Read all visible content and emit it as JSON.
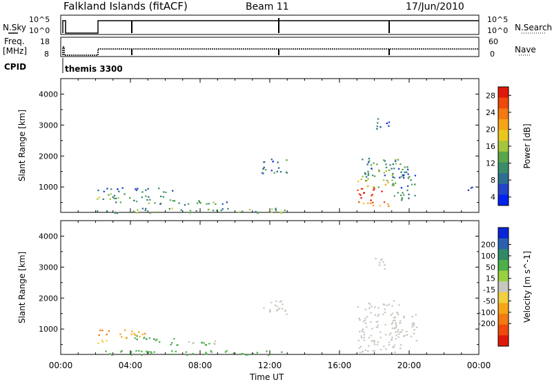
{
  "header": {
    "station": "Falkland Islands (fitACF)",
    "beam": "Beam 11",
    "date": "17/Jun/2010"
  },
  "top_panels": {
    "nsky_label": "N.Sky",
    "nsearch_label": "N.Search",
    "freq_label_1": "Freq.",
    "freq_label_2": "[MHz]",
    "nave_label": "Nave",
    "cpid_label": "CPID",
    "cpid_value": "themis 3300",
    "nsky_ticks": [
      "10^5",
      "10^0"
    ],
    "freq_ticks": [
      "18",
      "8"
    ],
    "nave_ticks": [
      "60",
      "0"
    ]
  },
  "chart_data": [
    {
      "type": "heatmap",
      "name": "power",
      "ylabel": "Slant Range [km]",
      "xlabel": "",
      "xlim": [
        0,
        24
      ],
      "ylim": [
        180,
        4500
      ],
      "xticks": [
        0,
        4,
        8,
        12,
        16,
        20,
        24
      ],
      "yticks": [
        1000,
        2000,
        3000,
        4000
      ],
      "colorbar": {
        "label": "Power [dB]",
        "ticks": [
          "4",
          "8",
          "12",
          "16",
          "20",
          "24",
          "28"
        ],
        "colors": [
          "#0022ee",
          "#2244c8",
          "#2e6e90",
          "#3b8c68",
          "#5aa64a",
          "#a4c63c",
          "#e8c81e",
          "#f4a616",
          "#f27a10",
          "#ee4a0c",
          "#e0180a"
        ]
      },
      "regions": [
        {
          "t0": 2.0,
          "t1": 3.8,
          "r0": 850,
          "r1": 1000,
          "value": 6
        },
        {
          "t0": 2.0,
          "t1": 2.9,
          "r0": 560,
          "r1": 720,
          "value": 14
        },
        {
          "t0": 2.6,
          "t1": 6.2,
          "r0": 650,
          "r1": 800,
          "value": 10
        },
        {
          "t0": 3.0,
          "t1": 8.0,
          "r0": 500,
          "r1": 620,
          "value": 12
        },
        {
          "t0": 4.0,
          "t1": 6.5,
          "r0": 820,
          "r1": 980,
          "value": 8
        },
        {
          "t0": 5.0,
          "t1": 9.5,
          "r0": 430,
          "r1": 540,
          "value": 10
        },
        {
          "t0": 2.0,
          "t1": 13.0,
          "r0": 180,
          "r1": 330,
          "value": 12
        },
        {
          "t0": 11.5,
          "t1": 13.0,
          "r0": 1450,
          "r1": 1950,
          "value": 8
        },
        {
          "t0": 17.0,
          "t1": 19.8,
          "r0": 1300,
          "r1": 1950,
          "value": 10
        },
        {
          "t0": 17.0,
          "t1": 19.0,
          "r0": 1000,
          "r1": 1300,
          "value": 16
        },
        {
          "t0": 17.0,
          "t1": 18.6,
          "r0": 500,
          "r1": 1000,
          "value": 26
        },
        {
          "t0": 17.3,
          "t1": 18.9,
          "r0": 380,
          "r1": 520,
          "value": 22
        },
        {
          "t0": 19.0,
          "t1": 20.3,
          "r0": 600,
          "r1": 1700,
          "value": 8
        },
        {
          "t0": 18.0,
          "t1": 18.8,
          "r0": 2900,
          "r1": 3300,
          "value": 6
        },
        {
          "t0": 23.3,
          "t1": 24.0,
          "r0": 900,
          "r1": 1100,
          "value": 6
        }
      ]
    },
    {
      "type": "heatmap",
      "name": "velocity",
      "ylabel": "Slant Range [km]",
      "xlabel": "Time UT",
      "xlim": [
        0,
        24
      ],
      "ylim": [
        180,
        4500
      ],
      "xticks": [
        0,
        4,
        8,
        12,
        16,
        20,
        24
      ],
      "xticklabels": [
        "00:00",
        "04:00",
        "08:00",
        "12:00",
        "16:00",
        "20:00",
        "00:00"
      ],
      "yticks": [
        1000,
        2000,
        3000,
        4000
      ],
      "colorbar": {
        "label": "Velocity [m s^-1]",
        "ticks": [
          "200",
          "100",
          "50",
          "15",
          "-15",
          "-50",
          "-100",
          "-200"
        ],
        "colors": [
          "#0a24d8",
          "#2a60b0",
          "#2f8a68",
          "#4cb04a",
          "#98d040",
          "#c8c8c0",
          "#f2d040",
          "#f4a618",
          "#f27a10",
          "#ee4a0c",
          "#e0180a"
        ]
      },
      "regions": [
        {
          "t0": 2.0,
          "t1": 2.8,
          "r0": 800,
          "r1": 1050,
          "value": -120
        },
        {
          "t0": 3.0,
          "t1": 4.8,
          "r0": 720,
          "r1": 1000,
          "value": -90
        },
        {
          "t0": 2.0,
          "t1": 3.0,
          "r0": 560,
          "r1": 720,
          "value": -40
        },
        {
          "t0": 4.2,
          "t1": 6.5,
          "r0": 620,
          "r1": 820,
          "value": 40
        },
        {
          "t0": 5.5,
          "t1": 8.5,
          "r0": 480,
          "r1": 620,
          "value": 30
        },
        {
          "t0": 7.0,
          "t1": 9.0,
          "r0": 520,
          "r1": 640,
          "value": 0
        },
        {
          "t0": 2.0,
          "t1": 13.0,
          "r0": 180,
          "r1": 330,
          "value": 30
        },
        {
          "t0": 11.5,
          "t1": 13.0,
          "r0": 1450,
          "r1": 1950,
          "value": 0
        },
        {
          "t0": 17.0,
          "t1": 19.5,
          "r0": 250,
          "r1": 1950,
          "value": 0
        },
        {
          "t0": 19.0,
          "t1": 20.4,
          "r0": 600,
          "r1": 1500,
          "value": 0
        },
        {
          "t0": 18.0,
          "t1": 18.8,
          "r0": 2900,
          "r1": 3300,
          "value": 0
        }
      ]
    }
  ]
}
